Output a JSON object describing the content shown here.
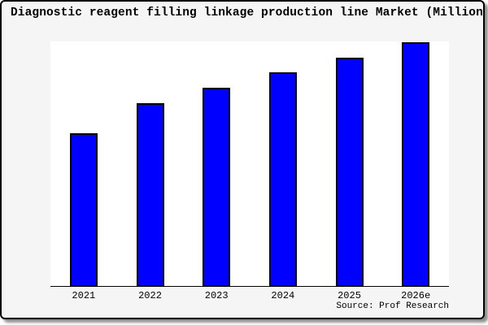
{
  "title": "Diagnostic reagent filling linkage production line Market (Million USD)",
  "source": "Source: Prof Research",
  "colors": {
    "card_background": "#f5f5f5",
    "plot_background": "#ffffff",
    "bar_fill": "#0000ff",
    "bar_edge": "#000000",
    "axis": "#000000",
    "border": "#000000",
    "shadow": "#8f8f8f",
    "text": "#000000"
  },
  "chart_data": {
    "type": "bar",
    "title": "Diagnostic reagent filling linkage production line Market (Million USD)",
    "categories": [
      "2021",
      "2022",
      "2023",
      "2024",
      "2025",
      "2026e"
    ],
    "values": [
      62.5,
      74.8,
      81.1,
      87.5,
      93.3,
      99.6
    ],
    "values_note": "percent of plot height; no y-axis tick labels are shown in the chart",
    "xlabel": "",
    "ylabel": "",
    "ylim": [
      0,
      100
    ],
    "gridlines": false,
    "legend": false,
    "y_axis_visible": false,
    "bar_color": "#0000ff",
    "bar_edge_color": "#000000",
    "source_label": "Source: Prof Research"
  }
}
